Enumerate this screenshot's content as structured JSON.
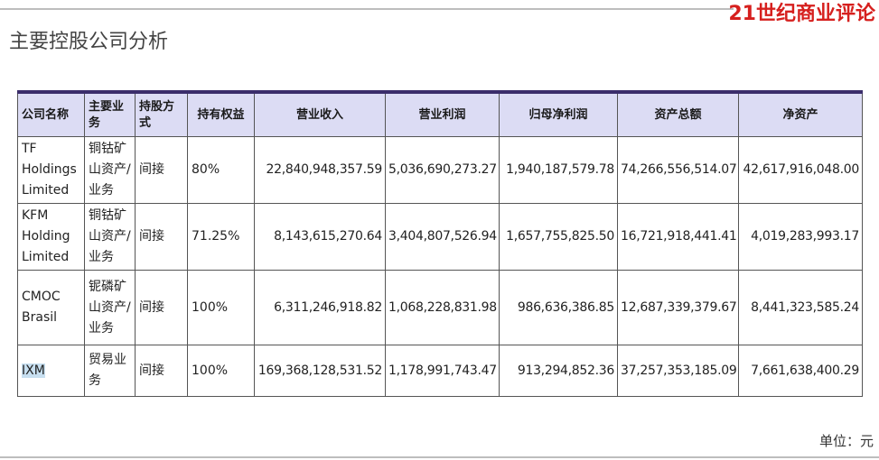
{
  "brand": "21世纪商业评论",
  "title": "主要控股公司分析",
  "table": {
    "headers": [
      "公司名称",
      "主要业务",
      "持股方式",
      "持有权益",
      "营业收入",
      "营业利润",
      "归母净利润",
      "资产总额",
      "净资产"
    ],
    "rows": [
      [
        "TF Holdings Limited",
        "铜钴矿山资产/业务",
        "间接",
        "80%",
        "22,840,948,357.59",
        "5,036,690,273.27",
        "1,940,187,579.78",
        "74,266,556,514.07",
        "42,617,916,048.00"
      ],
      [
        "KFM Holding Limited",
        "铜钴矿山资产/业务",
        "间接",
        "71.25%",
        "8,143,615,270.64",
        "3,404,807,526.94",
        "1,657,755,825.50",
        "16,721,918,441.41",
        "4,019,283,993.17"
      ],
      [
        "CMOC Brasil",
        "铌磷矿山资产/业务",
        "间接",
        "100%",
        "6,311,246,918.82",
        "1,068,228,831.98",
        "986,636,386.85",
        "12,687,339,379.67",
        "8,441,323,585.24"
      ],
      [
        "IXM",
        "贸易业务",
        "间接",
        "100%",
        "169,368,128,531.52",
        "1,178,991,743.47",
        "913,294,852.36",
        "37,257,353,185.09",
        "7,661,638,400.29"
      ]
    ]
  },
  "unit": "单位：元"
}
